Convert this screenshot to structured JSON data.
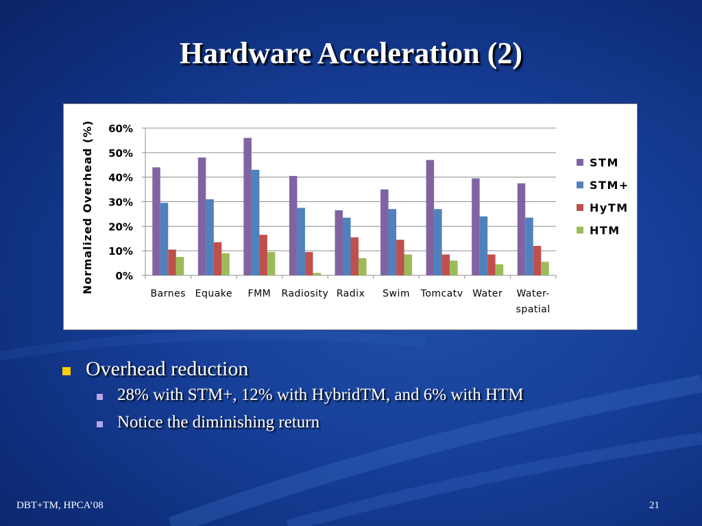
{
  "slide": {
    "title": "Hardware Acceleration (2)",
    "footer_left": "DBT+TM, HPCA’08",
    "page_number": "21"
  },
  "bullets": {
    "main": "Overhead reduction",
    "sub": [
      "28% with STM+, 12% with HybridTM, and 6% with HTM",
      "Notice the diminishing return"
    ]
  },
  "chart_data": {
    "type": "bar",
    "ylabel": "Normalized Overhead (%)",
    "xlabel": "",
    "ylim": [
      0,
      60
    ],
    "yticks": [
      "0%",
      "10%",
      "20%",
      "30%",
      "40%",
      "50%",
      "60%"
    ],
    "categories": [
      "Barnes",
      "Equake",
      "FMM",
      "Radiosity",
      "Radix",
      "Swim",
      "Tomcatv",
      "Water",
      "Water-spatial"
    ],
    "category_lines": [
      [
        "Barnes"
      ],
      [
        "Equake"
      ],
      [
        "FMM"
      ],
      [
        "Radiosity"
      ],
      [
        "Radix"
      ],
      [
        "Swim"
      ],
      [
        "Tomcatv"
      ],
      [
        "Water"
      ],
      [
        "Water-",
        "spatial"
      ]
    ],
    "series": [
      {
        "name": "STM",
        "color": "#8064a2",
        "values": [
          44,
          48,
          56,
          40.5,
          26.5,
          35,
          47,
          39.5,
          37.5
        ]
      },
      {
        "name": "STM+",
        "color": "#4f81bd",
        "values": [
          29.5,
          31,
          43,
          27.5,
          23.5,
          27,
          27,
          24,
          23.5
        ]
      },
      {
        "name": "HyTM",
        "color": "#c0504d",
        "values": [
          10.5,
          13.5,
          16.5,
          9.5,
          15.5,
          14.5,
          8.5,
          8.5,
          12
        ]
      },
      {
        "name": "HTM",
        "color": "#9bbb59",
        "values": [
          7.5,
          9,
          9.5,
          1,
          7,
          8.5,
          6,
          4.5,
          5.5
        ]
      }
    ],
    "grid": true,
    "legend_position": "right"
  }
}
